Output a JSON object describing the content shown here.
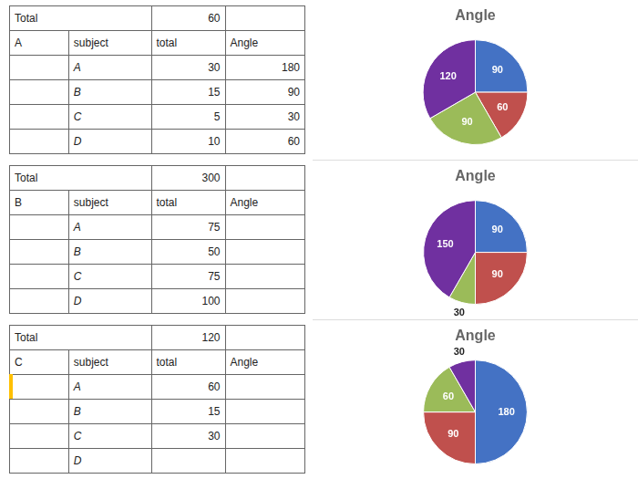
{
  "chart_data": [
    {
      "type": "table",
      "total": {
        "label": "Total",
        "value": 60
      },
      "header": [
        "A",
        "subject",
        "total",
        "Angle"
      ],
      "rows": [
        [
          null,
          "A",
          30,
          180
        ],
        [
          null,
          "B",
          15,
          90
        ],
        [
          null,
          "C",
          5,
          30
        ],
        [
          null,
          "D",
          10,
          60
        ]
      ]
    },
    {
      "type": "pie",
      "title": "Angle",
      "values": [
        90,
        60,
        90,
        120
      ],
      "colors": [
        "#4472c4",
        "#c0504d",
        "#9bbb59",
        "#7030a0"
      ],
      "data_labels": true
    },
    {
      "type": "table",
      "total": {
        "label": "Total",
        "value": 300
      },
      "header": [
        "B",
        "subject",
        "total",
        "Angle"
      ],
      "rows": [
        [
          null,
          "A",
          75,
          null
        ],
        [
          null,
          "B",
          50,
          null
        ],
        [
          null,
          "C",
          75,
          null
        ],
        [
          null,
          "D",
          100,
          null
        ]
      ]
    },
    {
      "type": "pie",
      "title": "Angle",
      "values": [
        90,
        90,
        30,
        150
      ],
      "colors": [
        "#4472c4",
        "#c0504d",
        "#9bbb59",
        "#7030a0"
      ],
      "data_labels": true
    },
    {
      "type": "table",
      "total": {
        "label": "Total",
        "value": 120
      },
      "header": [
        "C",
        "subject",
        "total",
        "Angle"
      ],
      "rows": [
        [
          null,
          "A",
          60,
          null
        ],
        [
          null,
          "B",
          15,
          null
        ],
        [
          null,
          "C",
          30,
          null
        ],
        [
          null,
          "D",
          null,
          null
        ]
      ],
      "color": "#ffc000"
    },
    {
      "type": "pie",
      "title": "Angle",
      "values": [
        180,
        90,
        60,
        30
      ],
      "colors": [
        "#4472c4",
        "#c0504d",
        "#9bbb59",
        "#7030a0"
      ],
      "data_labels": true
    }
  ]
}
